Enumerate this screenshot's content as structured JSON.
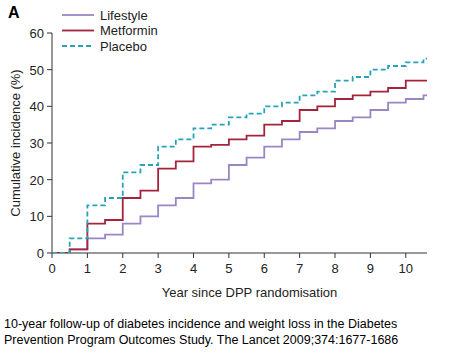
{
  "chart_data": {
    "type": "step",
    "title": "A",
    "x_label": "Year since DPP randomisation",
    "y_label": "Cumulative incidence (%)",
    "caption": [
      "10-year follow-up of diabetes incidence and weight loss in the Diabetes",
      "Prevention Program Outcomes Study. The Lancet 2009;374:1677-1686"
    ],
    "x": [
      0,
      0.5,
      1,
      1.5,
      2,
      2.5,
      3,
      3.5,
      4,
      4.5,
      5,
      5.5,
      6,
      6.5,
      7,
      7.5,
      8,
      8.5,
      9,
      9.5,
      10,
      10.5
    ],
    "series": [
      {
        "name": "Lifestyle",
        "color": "#9b86c4",
        "line_style": "solid",
        "values": [
          0,
          1,
          4,
          5,
          8,
          10,
          13,
          15,
          19,
          20,
          24,
          26,
          29,
          31,
          33,
          34,
          36,
          37,
          39,
          41,
          42,
          43
        ]
      },
      {
        "name": "Metformin",
        "color": "#a3243b",
        "line_style": "solid",
        "values": [
          0,
          1,
          8,
          9,
          15,
          17,
          23,
          25,
          29,
          29.5,
          31,
          32,
          35,
          36,
          39,
          40,
          42,
          43,
          44,
          45,
          47,
          47
        ]
      },
      {
        "name": "Placebo",
        "color": "#27a3b8",
        "line_style": "dashed",
        "values": [
          0,
          4,
          13,
          15,
          22,
          24,
          29,
          31,
          34,
          35,
          37,
          38,
          40,
          41,
          43,
          44,
          47,
          48,
          50,
          51,
          52,
          53
        ]
      }
    ],
    "xlim": [
      0,
      10.6
    ],
    "ylim": [
      0,
      60
    ],
    "xticks": [
      0,
      1,
      2,
      3,
      4,
      5,
      6,
      7,
      8,
      9,
      10
    ],
    "yticks": [
      0,
      10,
      20,
      30,
      40,
      50,
      60
    ],
    "legend": "upper left",
    "grid": false
  }
}
